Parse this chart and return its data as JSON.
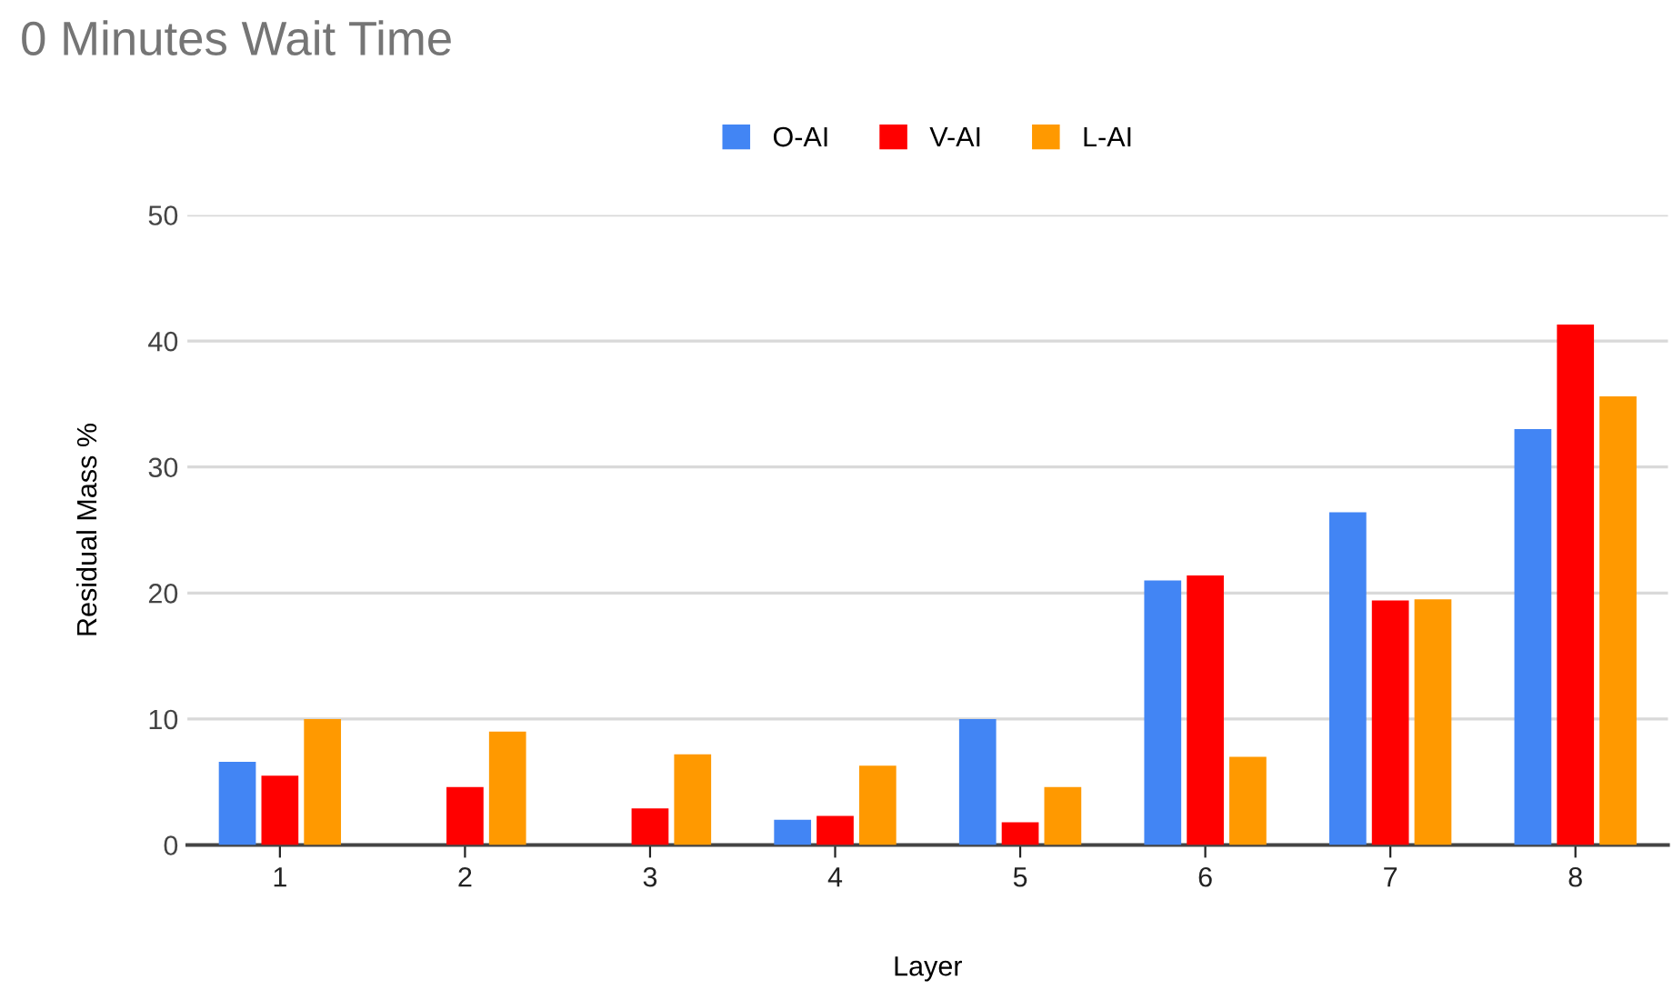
{
  "chart_data": {
    "type": "bar",
    "title": "0 Minutes Wait Time",
    "xlabel": "Layer",
    "ylabel": "Residual Mass %",
    "categories": [
      "1",
      "2",
      "3",
      "4",
      "5",
      "6",
      "7",
      "8"
    ],
    "series": [
      {
        "name": "O-AI",
        "color": "#4285f4",
        "values": [
          6.6,
          0,
          0,
          2.0,
          10.0,
          21.0,
          26.4,
          33.0
        ]
      },
      {
        "name": "V-AI",
        "color": "#ff0000",
        "values": [
          5.5,
          4.6,
          2.9,
          2.3,
          1.8,
          21.4,
          19.4,
          41.3
        ]
      },
      {
        "name": "L-AI",
        "color": "#ff9900",
        "values": [
          10.0,
          9.0,
          7.2,
          6.3,
          4.6,
          7.0,
          19.5,
          35.6
        ]
      }
    ],
    "ylim": [
      0,
      50
    ],
    "yticks": [
      0,
      10,
      20,
      30,
      40,
      50
    ],
    "grid": "y",
    "legend": "top"
  }
}
